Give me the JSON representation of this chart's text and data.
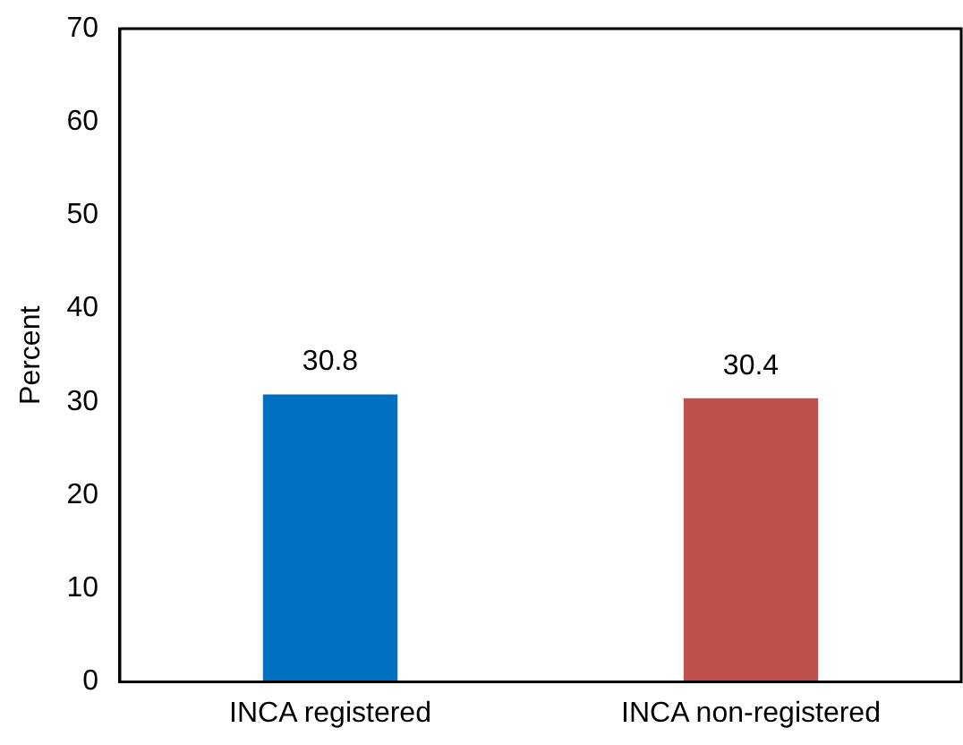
{
  "chart_data": {
    "type": "bar",
    "ylabel": "Percent",
    "categories": [
      "INCA registered",
      "INCA non-registered"
    ],
    "values": [
      30.8,
      30.4
    ],
    "colors": [
      "#0070c0",
      "#c0504d"
    ],
    "ylim": [
      0,
      70
    ],
    "yticks": [
      0,
      10,
      20,
      30,
      40,
      50,
      60,
      70
    ],
    "grid": false,
    "legend": false,
    "data_labels": true
  }
}
